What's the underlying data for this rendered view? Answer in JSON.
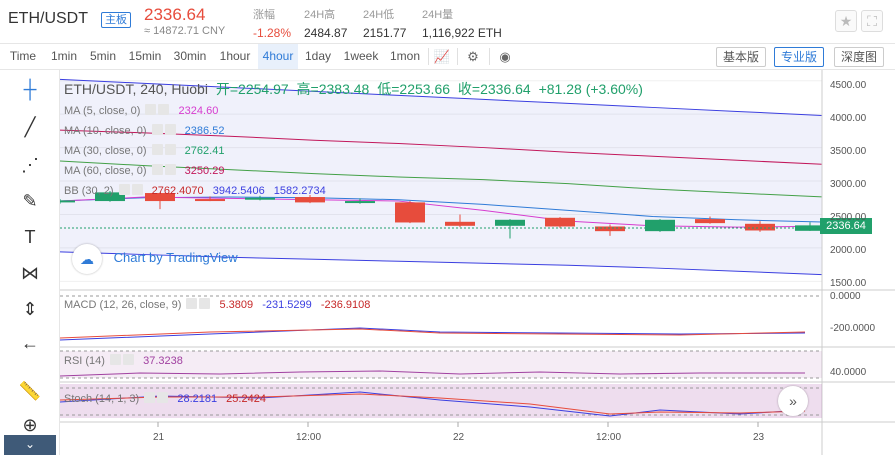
{
  "header": {
    "pair": "ETH/USDT",
    "badge": "主板",
    "price": "2336.64",
    "cny": "≈ 14872.71 CNY",
    "stats": [
      {
        "label": "涨幅",
        "value": "-1.28%"
      },
      {
        "label": "24H高",
        "value": "2484.87"
      },
      {
        "label": "24H低",
        "value": "2151.77"
      },
      {
        "label": "24H量",
        "value": "1,116,922 ETH"
      }
    ]
  },
  "toolbar": {
    "intervals": [
      "Time",
      "1min",
      "5min",
      "15min",
      "30min",
      "1hour",
      "4hour",
      "1day",
      "1week",
      "1mon"
    ],
    "active_interval": "4hour",
    "views": [
      "基本版",
      "专业版",
      "深度图"
    ],
    "active_view": "专业版"
  },
  "chart_title": {
    "symbol": "ETH/USDT, 240, Huobi",
    "open_label": "开=",
    "open": "2254.97",
    "high_label": "高=",
    "high": "2383.48",
    "low_label": "低=",
    "low": "2253.66",
    "close_label": "收=",
    "close": "2336.64",
    "change": "+81.28 (+3.60%)"
  },
  "indicators": [
    {
      "name": "MA (5, close, 0)",
      "value": "2324.60",
      "color": "#d63ccf"
    },
    {
      "name": "MA (10, close, 0)",
      "value": "2386.52",
      "color": "#2f7bd7"
    },
    {
      "name": "MA (30, close, 0)",
      "value": "2762.41",
      "color": "#21a06b"
    },
    {
      "name": "MA (60, close, 0)",
      "value": "3250.29",
      "color": "#c2185b"
    },
    {
      "name": "BB (30, 2)",
      "values": [
        "2762.4070",
        "3942.5406",
        "1582.2734"
      ]
    }
  ],
  "macd": {
    "name": "MACD (12, 26, close, 9)",
    "values": [
      "5.3809",
      "-231.5299",
      "-236.9108"
    ]
  },
  "rsi": {
    "name": "RSI (14)",
    "value": "37.3238"
  },
  "stoch": {
    "name": "Stoch (14, 1, 3)",
    "values": [
      "28.2181",
      "25.2424"
    ]
  },
  "watermark": "Chart by TradingView",
  "last_price_tag": "2336.64",
  "price_axis": [
    "4500.00",
    "4000.00",
    "3500.00",
    "3000.00",
    "2500.00",
    "2000.00",
    "1500.00"
  ],
  "macd_axis": [
    "0.0000",
    "-200.0000"
  ],
  "rsi_axis": [
    "40.0000"
  ],
  "time_axis": [
    "21",
    "12:00",
    "22",
    "12:00",
    "23"
  ],
  "chart_data": {
    "type": "candlestick",
    "ylim": [
      1400,
      4600
    ],
    "candles": [
      {
        "o": 2690,
        "c": 2710,
        "h": 2730,
        "l": 2660
      },
      {
        "o": 2700,
        "c": 2830,
        "h": 2850,
        "l": 2690
      },
      {
        "o": 2820,
        "c": 2700,
        "h": 2830,
        "l": 2580
      },
      {
        "o": 2730,
        "c": 2720,
        "h": 2770,
        "l": 2700
      },
      {
        "o": 2720,
        "c": 2750,
        "h": 2780,
        "l": 2710
      },
      {
        "o": 2760,
        "c": 2680,
        "h": 2790,
        "l": 2670
      },
      {
        "o": 2670,
        "c": 2700,
        "h": 2740,
        "l": 2660
      },
      {
        "o": 2680,
        "c": 2380,
        "h": 2700,
        "l": 2370
      },
      {
        "o": 2390,
        "c": 2330,
        "h": 2500,
        "l": 2310
      },
      {
        "o": 2330,
        "c": 2420,
        "h": 2430,
        "l": 2140
      },
      {
        "o": 2450,
        "c": 2320,
        "h": 2460,
        "l": 2300
      },
      {
        "o": 2320,
        "c": 2250,
        "h": 2350,
        "l": 2180
      },
      {
        "o": 2250,
        "c": 2420,
        "h": 2430,
        "l": 2240
      },
      {
        "o": 2430,
        "c": 2370,
        "h": 2470,
        "l": 2360
      },
      {
        "o": 2360,
        "c": 2260,
        "h": 2400,
        "l": 2240
      },
      {
        "o": 2254.97,
        "c": 2336.64,
        "h": 2383.48,
        "l": 2253.66
      }
    ]
  }
}
